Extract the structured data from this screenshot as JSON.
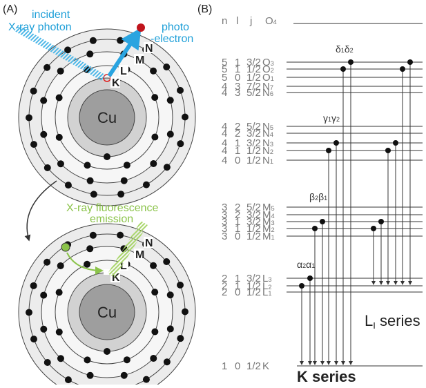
{
  "panel_a": {
    "label": "(A)",
    "incident": [
      "incident",
      "X-ray photon"
    ],
    "photoelectron": [
      "photo",
      "-electron"
    ],
    "atom_top": {
      "shells": [
        "N",
        "M",
        "L",
        "K"
      ],
      "core": "Cu"
    },
    "fluorescence": [
      "X-ray fluorescence",
      "emission"
    ],
    "atom_bottom": {
      "shells": [
        "N",
        "M",
        "L",
        "K"
      ],
      "core": "Cu"
    }
  },
  "panel_b": {
    "label": "(B)",
    "header": {
      "n": "n",
      "l": "l",
      "j": "j",
      "symbol": "O",
      "sub": "4"
    },
    "levels": [
      {
        "n": "5",
        "l": "1",
        "j": "3/2",
        "symbol": "O",
        "sub": "3"
      },
      {
        "n": "5",
        "l": "1",
        "j": "1/2",
        "symbol": "O",
        "sub": "2"
      },
      {
        "n": "5",
        "l": "0",
        "j": "1/2",
        "symbol": "O",
        "sub": "1"
      },
      {
        "n": "4",
        "l": "3",
        "j": "7/2",
        "symbol": "N",
        "sub": "7"
      },
      {
        "n": "4",
        "l": "3",
        "j": "5/2",
        "symbol": "N",
        "sub": "6"
      },
      {
        "n": "4",
        "l": "2",
        "j": "5/2",
        "symbol": "N",
        "sub": "5"
      },
      {
        "n": "4",
        "l": "2",
        "j": "3/2",
        "symbol": "N",
        "sub": "4"
      },
      {
        "n": "4",
        "l": "1",
        "j": "3/2",
        "symbol": "N",
        "sub": "3"
      },
      {
        "n": "4",
        "l": "1",
        "j": "1/2",
        "symbol": "N",
        "sub": "2"
      },
      {
        "n": "4",
        "l": "0",
        "j": "1/2",
        "symbol": "N",
        "sub": "1"
      },
      {
        "n": "3",
        "l": "2",
        "j": "5/2",
        "symbol": "M",
        "sub": "5"
      },
      {
        "n": "3",
        "l": "2",
        "j": "3/2",
        "symbol": "M",
        "sub": "4"
      },
      {
        "n": "3",
        "l": "1",
        "j": "3/2",
        "symbol": "M",
        "sub": "3"
      },
      {
        "n": "3",
        "l": "1",
        "j": "1/2",
        "symbol": "M",
        "sub": "2"
      },
      {
        "n": "3",
        "l": "0",
        "j": "1/2",
        "symbol": "M",
        "sub": "1"
      },
      {
        "n": "2",
        "l": "1",
        "j": "3/2",
        "symbol": "L",
        "sub": "3"
      },
      {
        "n": "2",
        "l": "1",
        "j": "1/2",
        "symbol": "L",
        "sub": "2"
      },
      {
        "n": "2",
        "l": "0",
        "j": "1/2",
        "symbol": "L",
        "sub": "1"
      },
      {
        "n": "1",
        "l": "0",
        "j": "1/2",
        "symbol": "K",
        "sub": ""
      }
    ],
    "lines": [
      [
        {
          "g": "δ",
          "s": "1"
        },
        {
          "g": "δ",
          "s": "2"
        }
      ],
      [
        {
          "g": "γ",
          "s": "1"
        },
        {
          "g": "γ",
          "s": "2"
        }
      ],
      [
        {
          "g": "β",
          "s": "2"
        },
        {
          "g": "β",
          "s": "1"
        }
      ],
      [
        {
          "g": "α",
          "s": "2"
        },
        {
          "g": "α",
          "s": "1"
        }
      ]
    ],
    "l_series": {
      "text": "L",
      "sub": "I",
      "rest": " series"
    },
    "k_series": "K series"
  }
}
